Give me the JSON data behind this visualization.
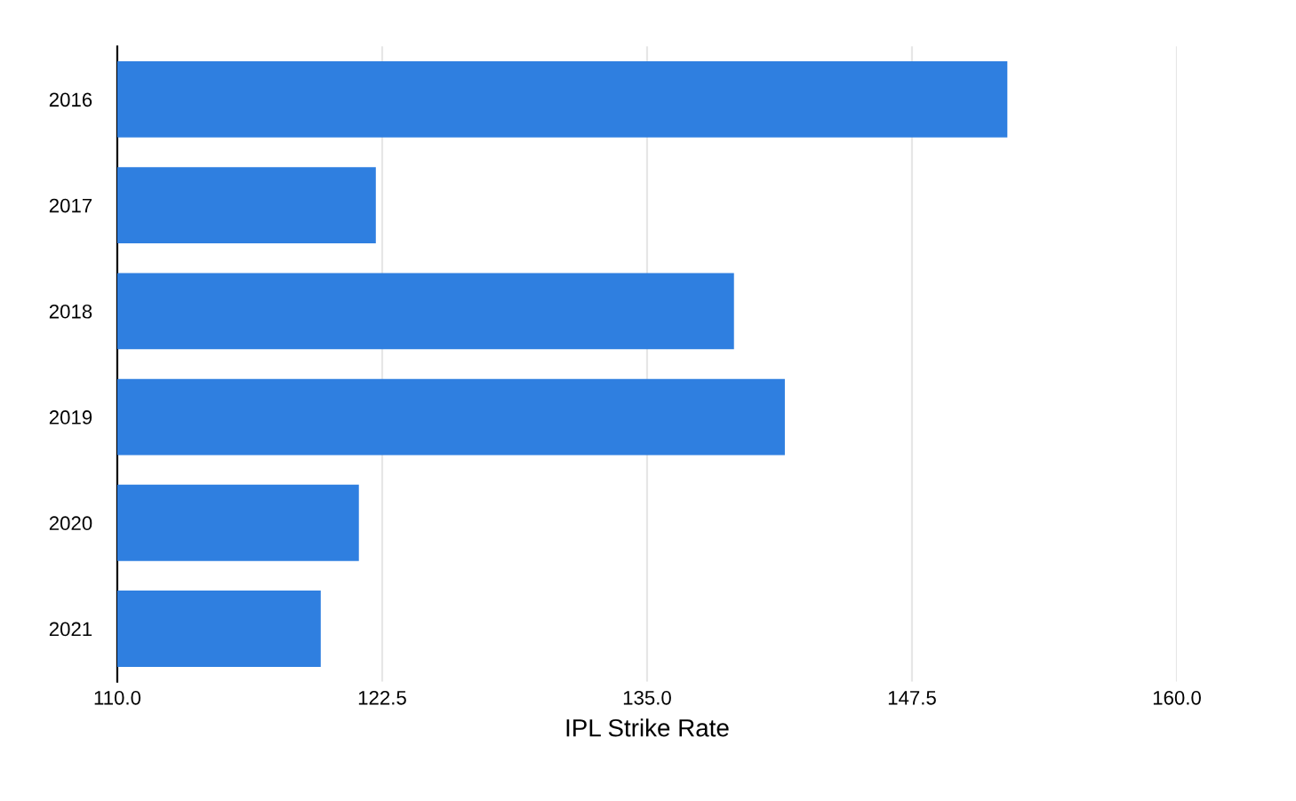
{
  "chart_data": {
    "type": "bar",
    "orientation": "horizontal",
    "xlabel": "IPL Strike Rate",
    "categories": [
      "2016",
      "2017",
      "2018",
      "2019",
      "2020",
      "2021"
    ],
    "values": [
      152.0,
      122.2,
      139.1,
      141.5,
      121.4,
      119.6
    ],
    "color": "#2f7fe0",
    "xlim": [
      110,
      160
    ],
    "xticks": [
      {
        "value": 110,
        "label": "110.0"
      },
      {
        "value": 122.5,
        "label": "122.5"
      },
      {
        "value": 135,
        "label": "135.0"
      },
      {
        "value": 147.5,
        "label": "147.5"
      },
      {
        "value": 160,
        "label": "160.0"
      }
    ],
    "grid": "x",
    "legend": false
  }
}
